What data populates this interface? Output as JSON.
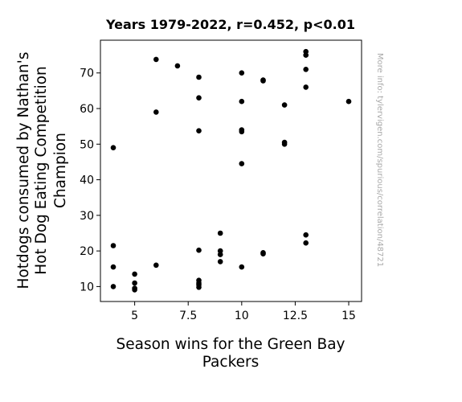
{
  "chart_data": {
    "type": "scatter",
    "title": "Years 1979-2022, r=0.452, p<0.01",
    "xlabel_lines": [
      "Season wins for the Green Bay",
      "Packers"
    ],
    "ylabel_lines": [
      "Hotdogs consumed by Nathan's",
      "Hot Dog Eating Competition",
      "Champion"
    ],
    "xlim": [
      3.4,
      15.6
    ],
    "ylim": [
      5.8,
      79.2
    ],
    "xticks": [
      5,
      7.5,
      10,
      12.5,
      15
    ],
    "xtick_labels": [
      "5",
      "7.5",
      "10",
      "12.5",
      "15"
    ],
    "yticks": [
      10,
      20,
      30,
      40,
      50,
      60,
      70
    ],
    "ytick_labels": [
      "10",
      "20",
      "30",
      "40",
      "50",
      "60",
      "70"
    ],
    "grid": false,
    "marker_color": "#000000",
    "points": [
      [
        4,
        10
      ],
      [
        4,
        15.5
      ],
      [
        4,
        21.5
      ],
      [
        4,
        49
      ],
      [
        5,
        9.1
      ],
      [
        5,
        9.5
      ],
      [
        5,
        11
      ],
      [
        5,
        13.5
      ],
      [
        6,
        16
      ],
      [
        6,
        59
      ],
      [
        6,
        73.8
      ],
      [
        7,
        72
      ],
      [
        8,
        9.8
      ],
      [
        8,
        10.5
      ],
      [
        8,
        11
      ],
      [
        8,
        11.75
      ],
      [
        8,
        20.2
      ],
      [
        8,
        53.75
      ],
      [
        8,
        63
      ],
      [
        8,
        68.8
      ],
      [
        9,
        17
      ],
      [
        9,
        19
      ],
      [
        9,
        20
      ],
      [
        9,
        25
      ],
      [
        10,
        15.5
      ],
      [
        10,
        44.5
      ],
      [
        10,
        53.5
      ],
      [
        10,
        54
      ],
      [
        10,
        62
      ],
      [
        10,
        70
      ],
      [
        11,
        19.2
      ],
      [
        11,
        19.5
      ],
      [
        11,
        67.8
      ],
      [
        11,
        68
      ],
      [
        12,
        50
      ],
      [
        12,
        50.5
      ],
      [
        12,
        61
      ],
      [
        13,
        22.25
      ],
      [
        13,
        24.5
      ],
      [
        13,
        66
      ],
      [
        13,
        71
      ],
      [
        13,
        75
      ],
      [
        13,
        76
      ],
      [
        15,
        62
      ]
    ]
  },
  "watermark": "More info: tylervigen.com/spurious/correlation/48721"
}
